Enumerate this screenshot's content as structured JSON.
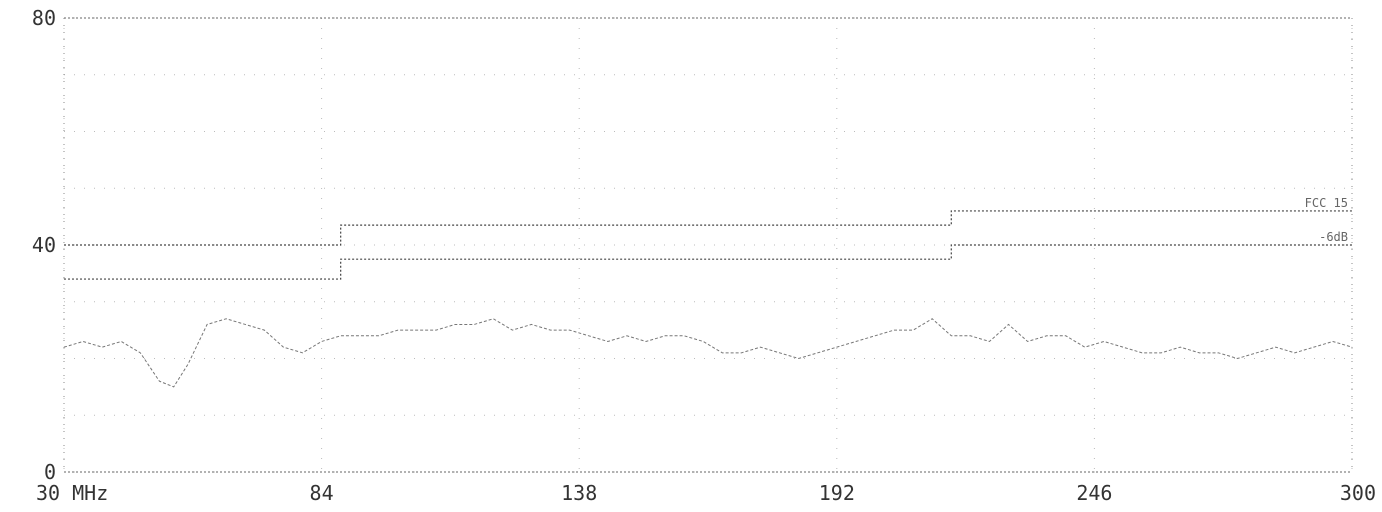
{
  "chart_data": {
    "type": "line",
    "xlim": [
      30,
      300
    ],
    "ylim": [
      0,
      80
    ],
    "x_unit_label": "MHz",
    "x_ticks": [
      {
        "value": 30,
        "label": "30 MHz"
      },
      {
        "value": 84,
        "label": "84"
      },
      {
        "value": 138,
        "label": "138"
      },
      {
        "value": 192,
        "label": "192"
      },
      {
        "value": 246,
        "label": "246"
      },
      {
        "value": 300,
        "label": "300"
      }
    ],
    "y_ticks": [
      {
        "value": 0,
        "label": "0"
      },
      {
        "value": 40,
        "label": "40"
      },
      {
        "value": 80,
        "label": "80"
      }
    ],
    "grid": "dotted",
    "limit_lines": [
      {
        "name": "FCC 15",
        "label": "FCC 15",
        "style": "dotted",
        "segments": [
          [
            30,
            88,
            40
          ],
          [
            88,
            216,
            43.5
          ],
          [
            216,
            300,
            46
          ]
        ]
      },
      {
        "name": "-6dB",
        "label": "-6dB",
        "style": "dotted",
        "segments": [
          [
            30,
            88,
            34
          ],
          [
            88,
            216,
            37.5
          ],
          [
            216,
            300,
            40
          ]
        ]
      }
    ],
    "series": [
      {
        "x": [
          30,
          34,
          38,
          42,
          46,
          50,
          53,
          56,
          60,
          64,
          68,
          72,
          76,
          80,
          84,
          88,
          92,
          96,
          100,
          104,
          108,
          112,
          116,
          120,
          124,
          128,
          132,
          136,
          140,
          144,
          148,
          152,
          156,
          160,
          164,
          168,
          172,
          176,
          180,
          184,
          188,
          192,
          196,
          200,
          204,
          208,
          212,
          216,
          220,
          224,
          228,
          232,
          236,
          240,
          244,
          248,
          252,
          256,
          260,
          264,
          268,
          272,
          276,
          280,
          284,
          288,
          292,
          296,
          300
        ],
        "values": [
          22,
          23,
          22,
          23,
          21,
          16,
          15,
          19,
          26,
          27,
          26,
          25,
          22,
          21,
          23,
          24,
          24,
          24,
          25,
          25,
          25,
          26,
          26,
          27,
          25,
          26,
          25,
          25,
          24,
          23,
          24,
          23,
          24,
          24,
          23,
          21,
          21,
          22,
          21,
          20,
          21,
          22,
          23,
          24,
          25,
          25,
          27,
          24,
          24,
          23,
          26,
          23,
          24,
          24,
          22,
          23,
          22,
          21,
          21,
          22,
          21,
          21,
          20,
          21,
          22,
          21,
          22,
          23,
          22
        ]
      }
    ]
  }
}
